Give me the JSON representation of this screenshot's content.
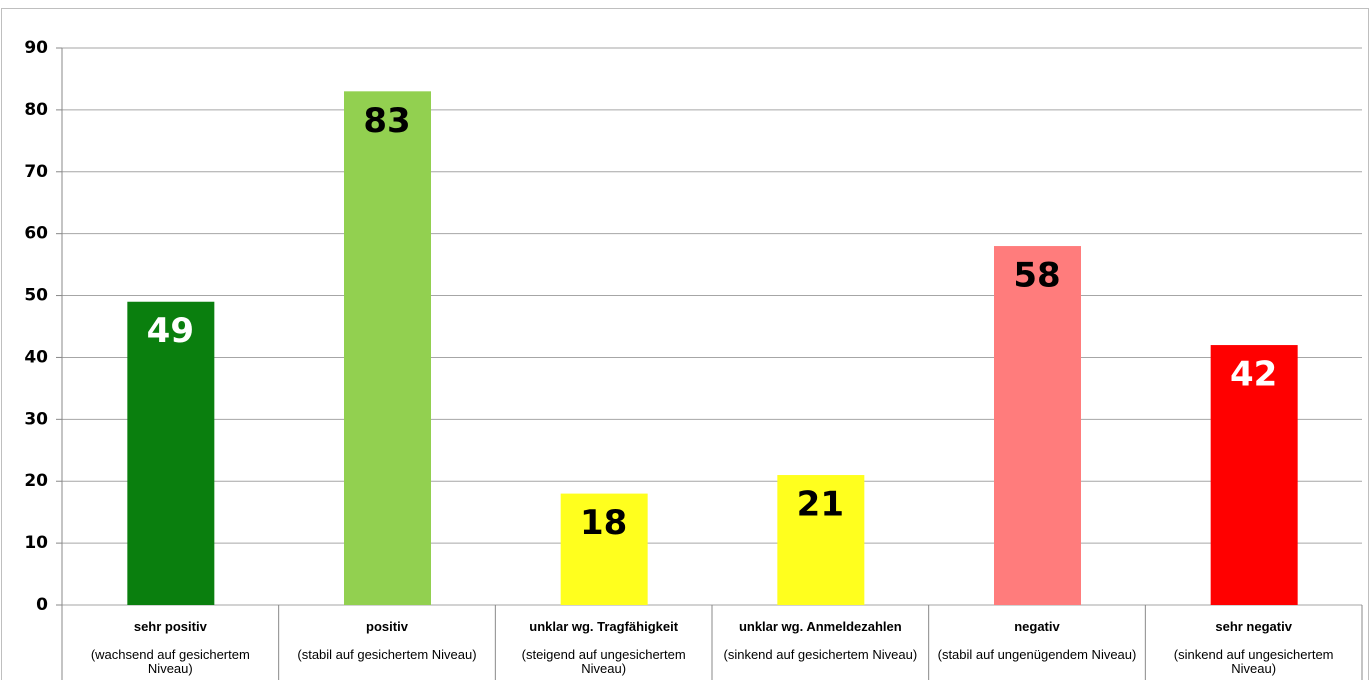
{
  "chart_data": {
    "type": "bar",
    "categories": [
      "sehr positiv",
      "positiv",
      "unklar wg. Tragfähigkeit",
      "unklar wg. Anmeldezahlen",
      "negativ",
      "sehr negativ"
    ],
    "category_descriptions": [
      "(wachsend auf gesichertem Niveau)",
      "(stabil auf gesichertem Niveau)",
      "(steigend auf ungesichertem Niveau)",
      "(sinkend auf gesichertem Niveau)",
      "(stabil auf ungenügendem Niveau)",
      "(sinkend auf ungesichertem Niveau)"
    ],
    "values": [
      49,
      83,
      18,
      21,
      58,
      42
    ],
    "colors": [
      "#0a7f0e",
      "#92d050",
      "#ffff1e",
      "#ffff1e",
      "#ff7c7c",
      "#ff0000"
    ],
    "value_label_colors": [
      "#ffffff",
      "#000000",
      "#000000",
      "#000000",
      "#000000",
      "#ffffff"
    ],
    "ylim": [
      0,
      90
    ],
    "yticks": [
      0,
      10,
      20,
      30,
      40,
      50,
      60,
      70,
      80,
      90
    ],
    "grid": true
  }
}
